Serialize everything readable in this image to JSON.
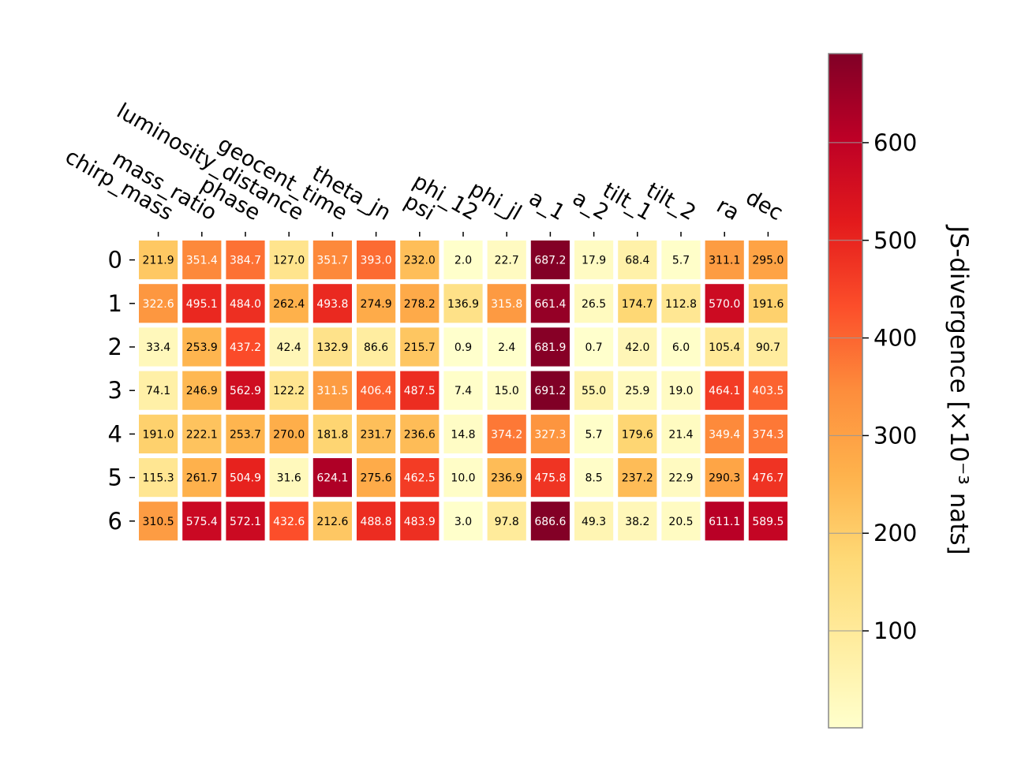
{
  "chart_data": {
    "type": "heatmap",
    "columns": [
      "chirp_mass",
      "mass_ratio",
      "phase",
      "luminosity_distance",
      "geocent_time",
      "theta_jn",
      "psi",
      "phi_12",
      "phi_jl",
      "a_1",
      "a_2",
      "tilt_1",
      "tilt_2",
      "ra",
      "dec"
    ],
    "rows": [
      "0",
      "1",
      "2",
      "3",
      "4",
      "5",
      "6"
    ],
    "values": [
      [
        211.9,
        351.4,
        384.7,
        127.0,
        351.7,
        393.0,
        232.0,
        2.0,
        22.7,
        687.2,
        17.9,
        68.4,
        5.7,
        311.1,
        295.0
      ],
      [
        322.6,
        495.1,
        484.0,
        262.4,
        493.8,
        274.9,
        278.2,
        136.9,
        315.8,
        661.4,
        26.5,
        174.7,
        112.8,
        570.0,
        191.6
      ],
      [
        33.4,
        253.9,
        437.2,
        42.4,
        132.9,
        86.6,
        215.7,
        0.9,
        2.4,
        681.9,
        0.7,
        42.0,
        6.0,
        105.4,
        90.7
      ],
      [
        74.1,
        246.9,
        562.9,
        122.2,
        311.5,
        406.4,
        487.5,
        7.4,
        15.0,
        691.2,
        55.0,
        25.9,
        19.0,
        464.1,
        403.5
      ],
      [
        191.0,
        222.1,
        253.7,
        270.0,
        181.8,
        231.7,
        236.6,
        14.8,
        374.2,
        327.3,
        5.7,
        179.6,
        21.4,
        349.4,
        374.3
      ],
      [
        115.3,
        261.7,
        504.9,
        31.6,
        624.1,
        275.6,
        462.5,
        10.0,
        236.9,
        475.8,
        8.5,
        237.2,
        22.9,
        290.3,
        476.7
      ],
      [
        310.5,
        575.4,
        572.1,
        432.6,
        212.6,
        488.8,
        483.9,
        3.0,
        97.8,
        686.6,
        49.3,
        38.2,
        20.5,
        611.1,
        589.5
      ]
    ],
    "value_format": "one decimal",
    "colormap": "YlOrRd",
    "colorbar": {
      "label": "JS-divergence [×10⁻³ nats]",
      "range": [
        0.7,
        691.2
      ],
      "ticks": [
        100,
        200,
        300,
        400,
        500,
        600
      ]
    }
  },
  "colors": {
    "ramp": [
      "#ffffcc",
      "#ffeda0",
      "#fed976",
      "#feb24c",
      "#fd8d3c",
      "#fc4e2a",
      "#e31a1c",
      "#bd0026",
      "#800026"
    ],
    "text_dark": "#000000",
    "text_light": "#ffffff"
  }
}
